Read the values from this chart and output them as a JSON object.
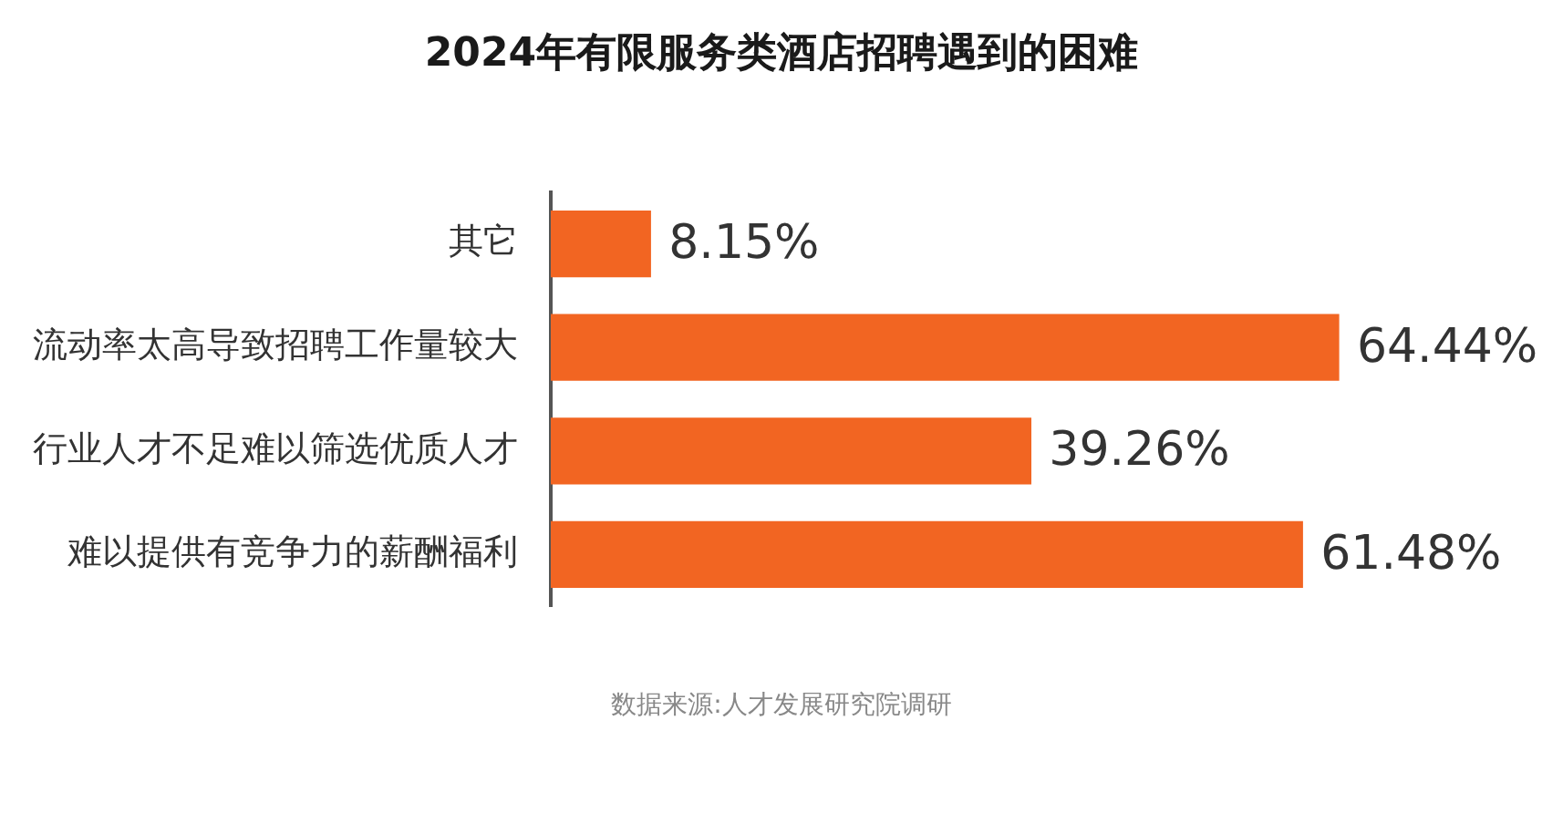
{
  "chart_data": {
    "type": "bar",
    "orientation": "horizontal",
    "title": "2024年有限服务类酒店招聘遇到的困难",
    "categories": [
      "其它",
      "流动率太高导致招聘工作量较大",
      "行业人才不足难以筛选优质人才",
      "难以提供有竞争力的薪酬福利"
    ],
    "values": [
      8.15,
      64.44,
      39.26,
      61.48
    ],
    "value_labels": [
      "8.15%",
      "64.44%",
      "39.26%",
      "61.48%"
    ],
    "color": "#f26522",
    "legend": false,
    "tick_labels": "y",
    "annotations": [
      "数据来源:人才发展研究院调研"
    ]
  }
}
